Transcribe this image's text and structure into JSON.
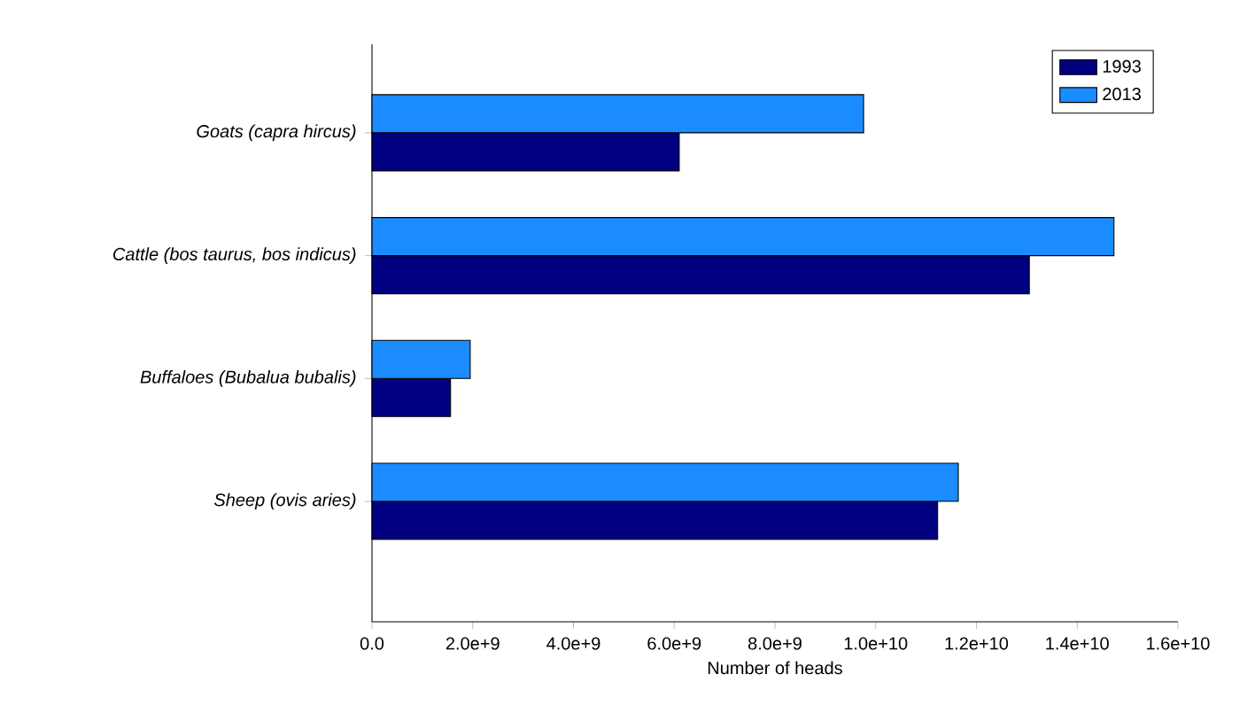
{
  "chart_data": {
    "type": "bar",
    "orientation": "horizontal",
    "categories": [
      "Goats (capra hircus)",
      "Cattle (bos taurus, bos indicus)",
      "Buffaloes (Bubalua bubalis)",
      "Sheep (ovis aries)"
    ],
    "series": [
      {
        "name": "1993",
        "color": "#000080",
        "values": [
          6100000000.0,
          13050000000.0,
          1560000000.0,
          11230000000.0
        ]
      },
      {
        "name": "2013",
        "color": "#1a8cff",
        "values": [
          9760000000.0,
          14730000000.0,
          1950000000.0,
          11640000000.0
        ]
      }
    ],
    "xlabel": "Number of heads",
    "xlim": [
      0,
      16000000000.0
    ],
    "xticks": [
      {
        "value": 0,
        "label": "0.0"
      },
      {
        "value": 2000000000.0,
        "label": "2.0e+9"
      },
      {
        "value": 4000000000.0,
        "label": "4.0e+9"
      },
      {
        "value": 6000000000.0,
        "label": "6.0e+9"
      },
      {
        "value": 8000000000.0,
        "label": "8.0e+9"
      },
      {
        "value": 10000000000.0,
        "label": "1.0e+10"
      },
      {
        "value": 12000000000.0,
        "label": "1.2e+10"
      },
      {
        "value": 14000000000.0,
        "label": "1.4e+10"
      },
      {
        "value": 16000000000.0,
        "label": "1.6e+10"
      }
    ],
    "legend": "top right"
  }
}
